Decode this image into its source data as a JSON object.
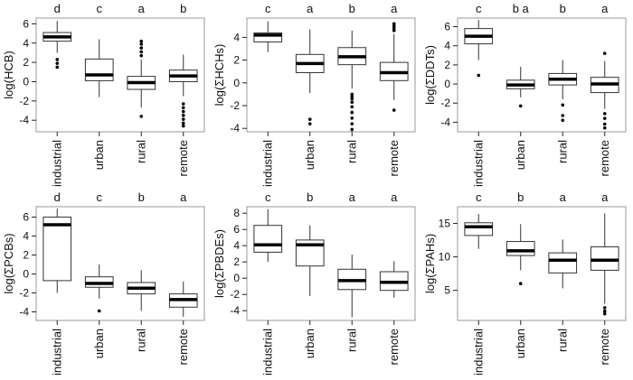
{
  "chart_data": [
    {
      "type": "box",
      "ylabel": "log(HCB)",
      "ylim": [
        -5.2,
        6.6
      ],
      "yticks": [
        -4,
        -2,
        0,
        2,
        4,
        6
      ],
      "categories": [
        "industrial",
        "urban",
        "rural",
        "remote"
      ],
      "significance": [
        "d",
        "c",
        "a",
        "b"
      ],
      "boxes": [
        {
          "min": 3.0,
          "q1": 4.2,
          "median": 4.65,
          "q3": 5.1,
          "max": 6.3,
          "outliers": [
            2.3,
            1.9,
            1.5
          ]
        },
        {
          "min": -1.6,
          "q1": 0.1,
          "median": 0.7,
          "q3": 2.35,
          "max": 4.4,
          "outliers": []
        },
        {
          "min": -2.7,
          "q1": -0.8,
          "median": -0.1,
          "q3": 0.55,
          "max": 2.3,
          "outliers": [
            2.7,
            3.1,
            3.5,
            3.9,
            4.2,
            -3.6
          ]
        },
        {
          "min": -1.5,
          "q1": 0.0,
          "median": 0.6,
          "q3": 1.2,
          "max": 2.8,
          "outliers": [
            -2.3,
            -2.7,
            -3.1,
            -3.5,
            -3.9,
            -4.3,
            -4.6
          ]
        }
      ]
    },
    {
      "type": "box",
      "ylabel": "log(ΣHCHs)",
      "ylim": [
        -4.3,
        5.7
      ],
      "yticks": [
        -4,
        -2,
        0,
        2,
        4
      ],
      "categories": [
        "industrial",
        "urban",
        "rural",
        "remote"
      ],
      "significance": [
        "c",
        "a",
        "b",
        "a"
      ],
      "boxes": [
        {
          "min": 2.7,
          "q1": 3.6,
          "median": 4.2,
          "q3": 4.4,
          "max": 5.4,
          "outliers": []
        },
        {
          "min": -0.9,
          "q1": 0.9,
          "median": 1.7,
          "q3": 2.5,
          "max": 4.7,
          "outliers": [
            -3.2,
            -3.6
          ]
        },
        {
          "min": -0.5,
          "q1": 1.6,
          "median": 2.3,
          "q3": 3.1,
          "max": 4.6,
          "outliers": [
            -1.0,
            -1.2,
            -1.4,
            -1.7,
            -2.1,
            -2.6,
            -3.1,
            -3.6,
            -4.1
          ]
        },
        {
          "min": -1.5,
          "q1": 0.2,
          "median": 0.9,
          "q3": 1.8,
          "max": 4.3,
          "outliers": [
            4.6,
            4.8,
            5.0,
            5.2,
            -2.4
          ]
        }
      ]
    },
    {
      "type": "box",
      "ylabel": "log(ΣDDTs)",
      "ylim": [
        -5.0,
        6.9
      ],
      "yticks": [
        -4,
        -2,
        0,
        2,
        4,
        6
      ],
      "categories": [
        "industrial",
        "urban",
        "rural",
        "remote"
      ],
      "significance": [
        "c",
        "b a",
        "b",
        "a"
      ],
      "boxes": [
        {
          "min": 2.5,
          "q1": 4.2,
          "median": 5.0,
          "q3": 5.8,
          "max": 6.7,
          "outliers": [
            0.9
          ]
        },
        {
          "min": -1.4,
          "q1": -0.5,
          "median": -0.1,
          "q3": 0.4,
          "max": 1.8,
          "outliers": [
            -2.3
          ]
        },
        {
          "min": -1.6,
          "q1": -0.1,
          "median": 0.5,
          "q3": 1.1,
          "max": 2.5,
          "outliers": [
            -2.2,
            -3.3,
            -3.8
          ]
        },
        {
          "min": -2.6,
          "q1": -0.9,
          "median": 0.0,
          "q3": 0.7,
          "max": 2.4,
          "outliers": [
            3.2,
            -3.1,
            -3.6,
            -4.2,
            -4.6
          ]
        }
      ]
    },
    {
      "type": "box",
      "ylabel": "log(ΣPCBs)",
      "ylim": [
        -4.9,
        7.1
      ],
      "yticks": [
        -4,
        -2,
        0,
        2,
        4,
        6
      ],
      "categories": [
        "industrial",
        "urban",
        "rural",
        "remote"
      ],
      "significance": [
        "d",
        "c",
        "b",
        "a"
      ],
      "boxes": [
        {
          "min": -2.0,
          "q1": -0.7,
          "median": 5.2,
          "q3": 6.0,
          "max": 6.9,
          "outliers": []
        },
        {
          "min": -2.6,
          "q1": -1.4,
          "median": -1.0,
          "q3": -0.3,
          "max": 1.0,
          "outliers": [
            -3.9
          ]
        },
        {
          "min": -3.9,
          "q1": -2.1,
          "median": -1.5,
          "q3": -0.9,
          "max": 0.4,
          "outliers": []
        },
        {
          "min": -4.5,
          "q1": -3.5,
          "median": -2.7,
          "q3": -2.1,
          "max": -0.8,
          "outliers": []
        }
      ]
    },
    {
      "type": "box",
      "ylabel": "log(ΣPBDEs)",
      "ylim": [
        -5.2,
        8.8
      ],
      "yticks": [
        -4,
        -2,
        0,
        2,
        4,
        6,
        8
      ],
      "categories": [
        "industrial",
        "urban",
        "rural",
        "remote"
      ],
      "significance": [
        "c",
        "b",
        "a",
        "a"
      ],
      "boxes": [
        {
          "min": 2.0,
          "q1": 3.2,
          "median": 4.1,
          "q3": 6.5,
          "max": 8.5,
          "outliers": []
        },
        {
          "min": -2.2,
          "q1": 1.5,
          "median": 4.1,
          "q3": 4.7,
          "max": 6.5,
          "outliers": []
        },
        {
          "min": -4.8,
          "q1": -1.4,
          "median": -0.3,
          "q3": 1.1,
          "max": 2.9,
          "outliers": []
        },
        {
          "min": -2.4,
          "q1": -1.5,
          "median": -0.5,
          "q3": 0.8,
          "max": 2.1,
          "outliers": []
        }
      ]
    },
    {
      "type": "box",
      "ylabel": "log(ΣPAHs)",
      "ylim": [
        0.5,
        17.5
      ],
      "yticks": [
        5,
        10,
        15
      ],
      "categories": [
        "industrial",
        "urban",
        "rural",
        "remote"
      ],
      "significance": [
        "c",
        "b",
        "a",
        "a"
      ],
      "boxes": [
        {
          "min": 11.2,
          "q1": 13.2,
          "median": 14.5,
          "q3": 15.1,
          "max": 16.4,
          "outliers": []
        },
        {
          "min": 8.0,
          "q1": 10.2,
          "median": 10.9,
          "q3": 12.3,
          "max": 14.9,
          "outliers": [
            6.0
          ]
        },
        {
          "min": 5.3,
          "q1": 7.6,
          "median": 9.5,
          "q3": 10.6,
          "max": 12.6,
          "outliers": []
        },
        {
          "min": 3.0,
          "q1": 8.0,
          "median": 9.5,
          "q3": 11.5,
          "max": 16.5,
          "outliers": [
            2.4,
            1.9,
            1.5
          ]
        }
      ]
    }
  ]
}
